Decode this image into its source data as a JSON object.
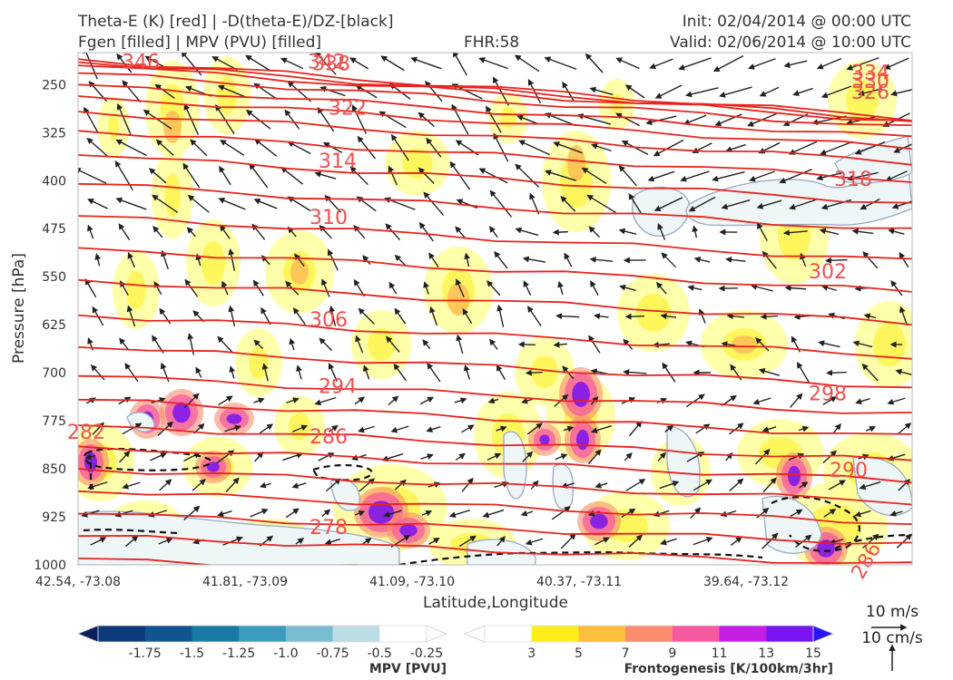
{
  "header": {
    "title_line1": "Theta-E (K) [red] | -D(theta-E)/DZ-[black]",
    "title_line2": "Fgen [filled] | MPV (PVU) [filled]",
    "fhr": "FHR:58",
    "init": "Init: 02/04/2014 @ 00:00 UTC",
    "valid": "Valid: 02/06/2014 @ 10:00 UTC"
  },
  "chart_data": {
    "type": "cross-section",
    "xlabel": "Latitude,Longitude",
    "ylabel": "Pressure [hPa]",
    "ylim": [
      1000,
      200
    ],
    "y_ticks": [
      250,
      325,
      400,
      475,
      550,
      625,
      700,
      775,
      850,
      925,
      1000
    ],
    "x_ticks": [
      "42.54, -73.08",
      "41.81, -73.09",
      "41.09, -73.10",
      "40.37, -73.11",
      "39.64, -73.12"
    ],
    "theta_e_contours": [
      {
        "value": "346",
        "p": 215
      },
      {
        "value": "342",
        "p": 215
      },
      {
        "value": "338",
        "p": 218
      },
      {
        "value": "334",
        "p": 232
      },
      {
        "value": "330",
        "p": 245
      },
      {
        "value": "326",
        "p": 262
      },
      {
        "value": "322",
        "p": 287
      },
      {
        "value": "318",
        "p": 398
      },
      {
        "value": "314",
        "p": 370
      },
      {
        "value": "310",
        "p": 458
      },
      {
        "value": "306",
        "p": 618
      },
      {
        "value": "302",
        "p": 543
      },
      {
        "value": "298",
        "p": 733
      },
      {
        "value": "294",
        "p": 722
      },
      {
        "value": "290",
        "p": 853
      },
      {
        "value": "286",
        "p": 800
      },
      {
        "value": "282",
        "p": 793
      },
      {
        "value": "278",
        "p": 942
      },
      {
        "value": "286",
        "p": 968
      }
    ],
    "wind_reference": {
      "horizontal": "10 m/s",
      "vertical": "10 cm/s"
    },
    "colorbar_mpv": {
      "label": "MPV [PVU]",
      "ticks": [
        "-1.75",
        "-1.5",
        "-1.25",
        "-1.0",
        "-0.75",
        "-0.5",
        "-0.25"
      ],
      "colors": [
        "#0a1f5c",
        "#0d3a7a",
        "#10558f",
        "#1a7aa6",
        "#3b9cc0",
        "#78bdd2",
        "#bddde6",
        "#ffffff"
      ]
    },
    "colorbar_fgen": {
      "label": "Frontogenesis [K/100km/3hr]",
      "ticks": [
        "3",
        "5",
        "7",
        "9",
        "11",
        "13",
        "15"
      ],
      "colors": [
        "#ffffff",
        "#ffee1a",
        "#ffbe3c",
        "#fb8c6e",
        "#f55aa0",
        "#c31ee1",
        "#7814f0",
        "#2814f5"
      ]
    }
  }
}
